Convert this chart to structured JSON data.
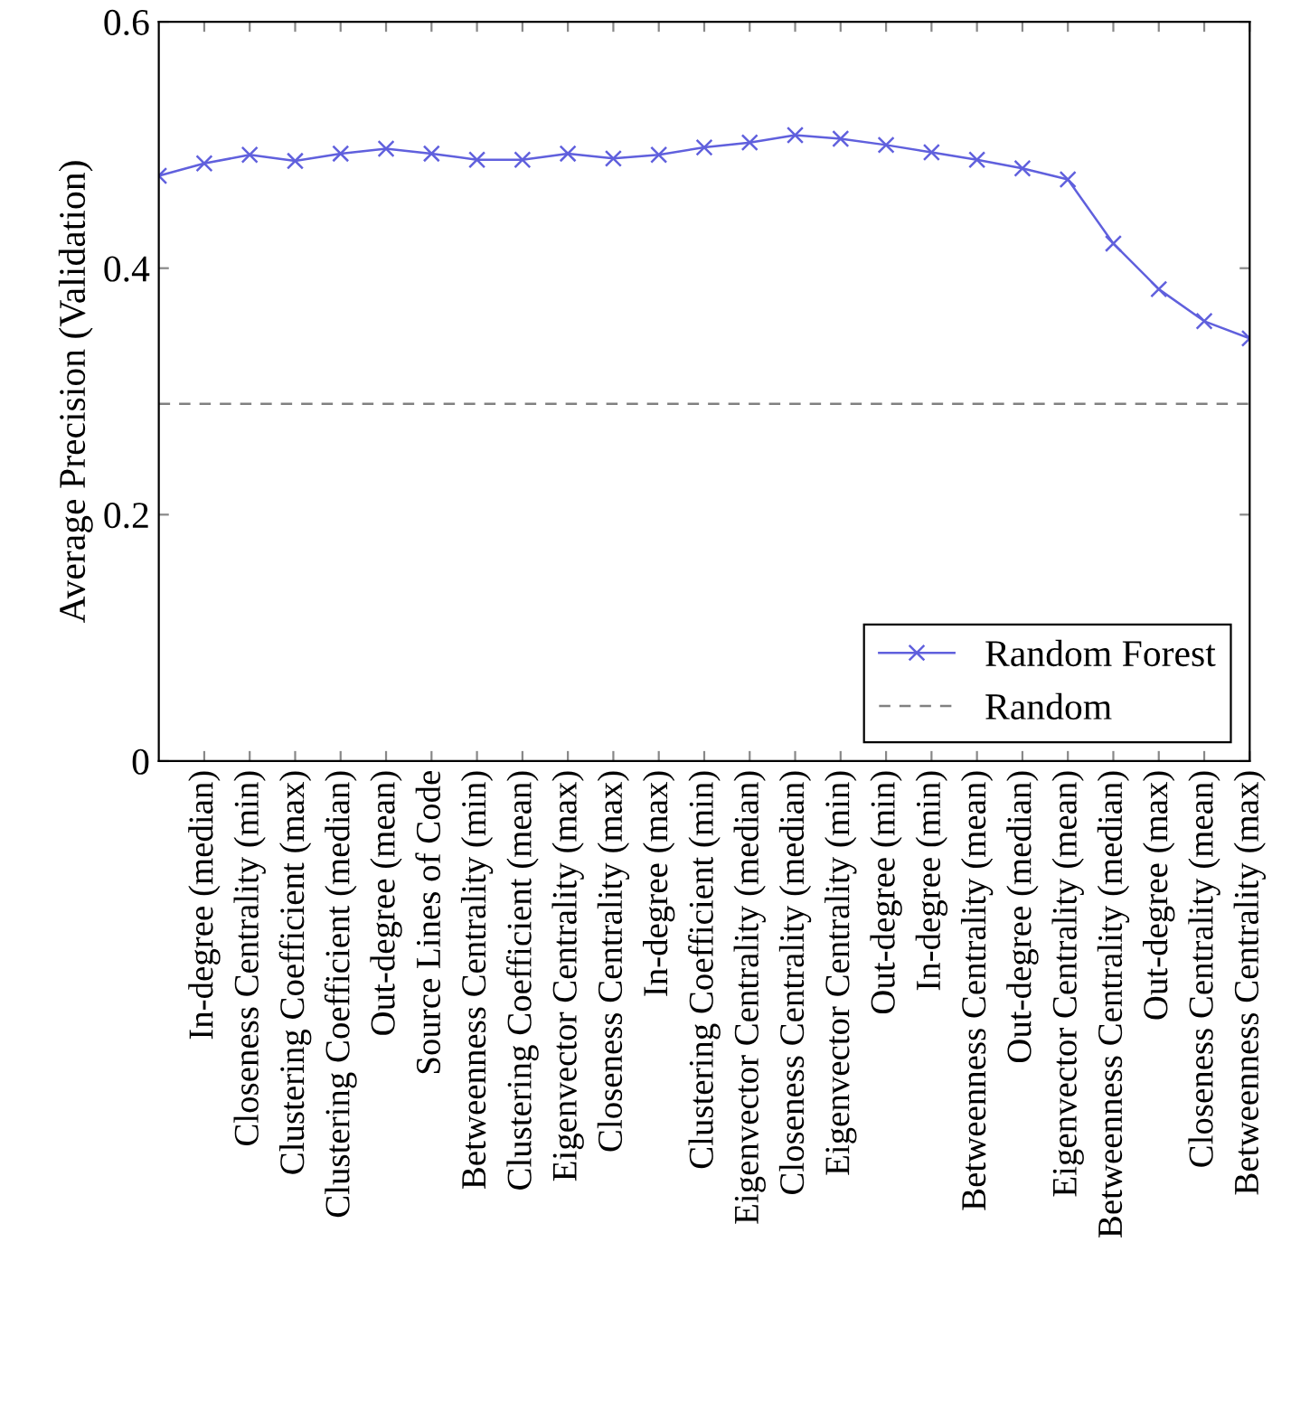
{
  "chart_data": {
    "type": "line",
    "ylabel": "Average Precision (Validation)",
    "categories": [
      null,
      "In-degree (median)",
      "Closeness Centrality (min)",
      "Clustering Coefficient (max)",
      "Clustering Coefficient (median)",
      "Out-degree (mean)",
      "Source Lines of Code",
      "Betweenness Centrality (min)",
      "Clustering Coefficient (mean)",
      "Eigenvector Centrality (max)",
      "Closeness Centrality (max)",
      "In-degree (max)",
      "Clustering Coefficient (min)",
      "Eigenvector Centrality (median)",
      "Closeness Centrality (median)",
      "Eigenvector Centrality (min)",
      "Out-degree (min)",
      "In-degree (min)",
      "Betweenness Centrality (mean)",
      "Out-degree (median)",
      "Eigenvector Centrality (mean)",
      "Betweenness Centrality (median)",
      "Out-degree (max)",
      "Closeness Centrality (mean)",
      "Betweenness Centrality (max)"
    ],
    "series": [
      {
        "name": "Random Forest",
        "color": "#6060dd",
        "values": [
          0.475,
          0.485,
          0.492,
          0.487,
          0.493,
          0.497,
          0.493,
          0.488,
          0.488,
          0.493,
          0.489,
          0.492,
          0.498,
          0.502,
          0.508,
          0.505,
          0.5,
          0.494,
          0.488,
          0.481,
          0.472,
          0.42,
          0.383,
          0.357,
          0.343
        ]
      }
    ],
    "ref_lines": [
      {
        "axis": "y",
        "value": 0.29,
        "label": "Random",
        "color": "#808080",
        "line_style": "dashed"
      }
    ],
    "ylim": [
      0,
      0.6
    ],
    "yticks": [
      0,
      0.2,
      0.4,
      0.6
    ],
    "marker": "cross",
    "line_style": "solid",
    "legend": "bottom right",
    "grid": false
  }
}
